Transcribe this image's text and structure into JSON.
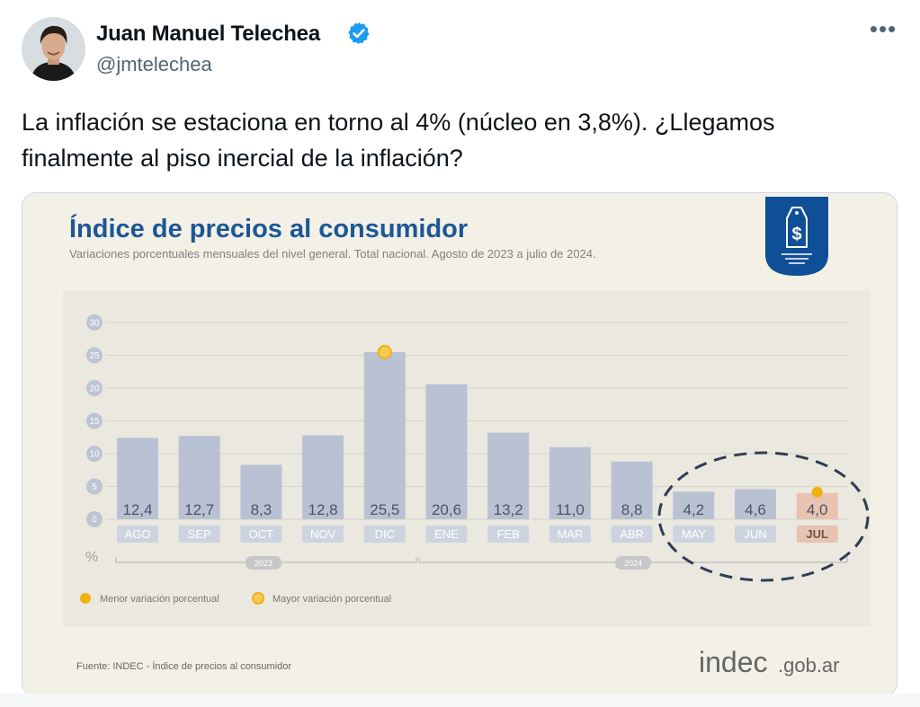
{
  "author": {
    "name": "Juan Manuel Telechea",
    "handle": "@jmtelechea",
    "verified_icon": "verified-badge-icon",
    "avatar_icon": "avatar-photo"
  },
  "more_icon": "more-dots-icon",
  "more_label": "•••",
  "tweet_text": "La inflación se estaciona en torno al 4% (núcleo en 3,8%). ¿Llegamos finalmente al piso inercial de la inflación?",
  "colors": {
    "title": "#1c5796",
    "bar": "#b9c2d2",
    "bar_highlight": "#e8c3b0",
    "marker": "#f1b20f",
    "badge": "#0f4f97",
    "link": "#1d9bf0"
  },
  "chart": {
    "title": "Índice de precios al consumidor",
    "subtitle": "Variaciones porcentuales mensuales del nivel general. Total nacional. Agosto de 2023 a julio de 2024.",
    "unit_label": "%",
    "year_labels": [
      "2023",
      "2024"
    ],
    "legend": {
      "min_label": "Menor variación porcentual",
      "max_label": "Mayor variación porcentual"
    },
    "source": "Fuente: INDEC - Índice de precios al consumidor",
    "logo_text": "indec",
    "logo_suffix": ".gob.ar",
    "badge_icon": "price-tag-dollar-icon"
  },
  "chart_data": {
    "type": "bar",
    "title": "Índice de precios al consumidor",
    "categories": [
      "AGO",
      "SEP",
      "OCT",
      "NOV",
      "DIC",
      "ENE",
      "FEB",
      "MAR",
      "ABR",
      "MAY",
      "JUN",
      "JUL"
    ],
    "values": [
      12.4,
      12.7,
      8.3,
      12.8,
      25.5,
      20.6,
      13.2,
      11.0,
      8.8,
      4.2,
      4.6,
      4.0
    ],
    "value_labels": [
      "12,4",
      "12,7",
      "8,3",
      "12,8",
      "25,5",
      "20,6",
      "13,2",
      "11,0",
      "8,8",
      "4,2",
      "4,6",
      "4,0"
    ],
    "yticks": [
      0,
      5,
      10,
      15,
      20,
      25,
      30
    ],
    "ylim": [
      0,
      30
    ],
    "max_category": "DIC",
    "min_category": "JUL",
    "highlight_category": "JUL",
    "grid": true,
    "legend_position": "bottom-left"
  }
}
